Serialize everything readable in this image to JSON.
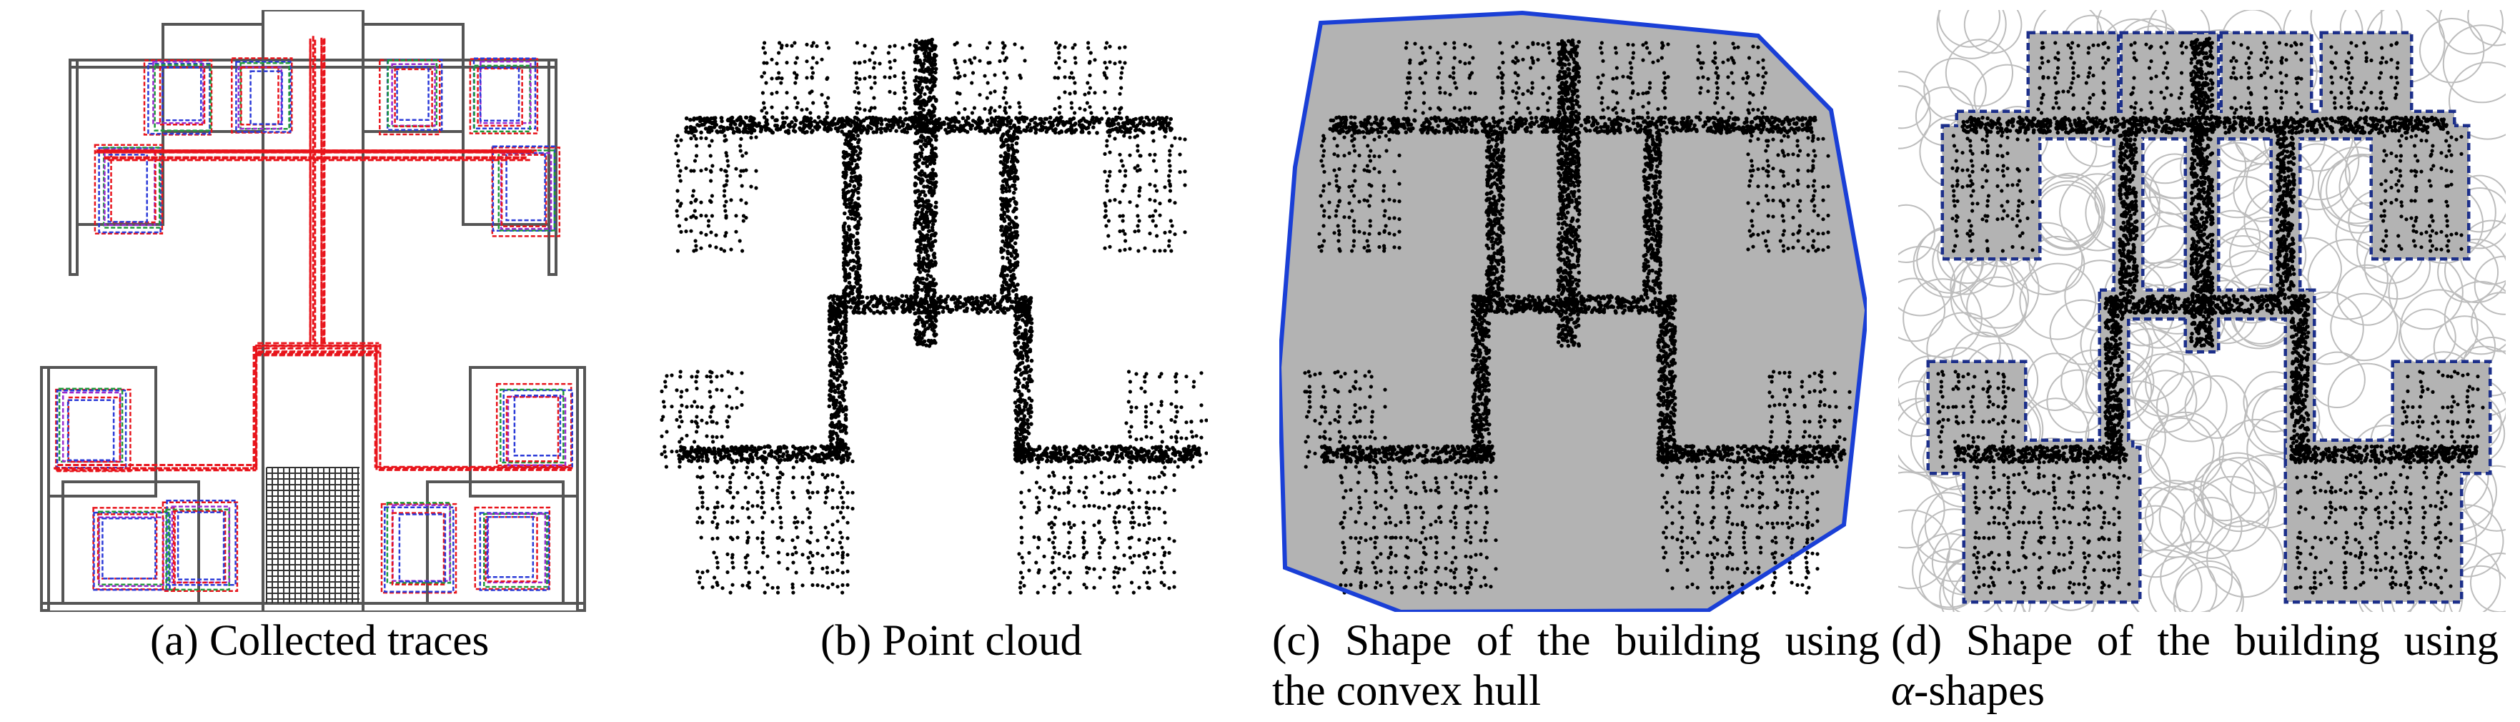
{
  "figure": {
    "panels": [
      {
        "id": "a",
        "label": "(a)",
        "caption": "Collected traces"
      },
      {
        "id": "b",
        "label": "(b)",
        "caption": "Point cloud"
      },
      {
        "id": "c",
        "label": "(c)",
        "caption_line1": "Shape of the building using",
        "caption_line2": "the convex hull"
      },
      {
        "id": "d",
        "label": "(d)",
        "caption_line1": "Shape of the building using",
        "alpha_symbol": "α",
        "caption_line2_suffix": "-shapes"
      }
    ],
    "colors": {
      "trace_red": "#e8141b",
      "trace_blue": "#2a3ad8",
      "trace_green": "#1f9a3a",
      "trace_purple": "#9a2ad0",
      "wall": "#555555",
      "point": "#000000",
      "hull_fill": "#b3b3b3",
      "hull_edge": "#1a3fd6",
      "alpha_edge": "#1c2f8a",
      "circle": "#bdbdbd"
    }
  }
}
